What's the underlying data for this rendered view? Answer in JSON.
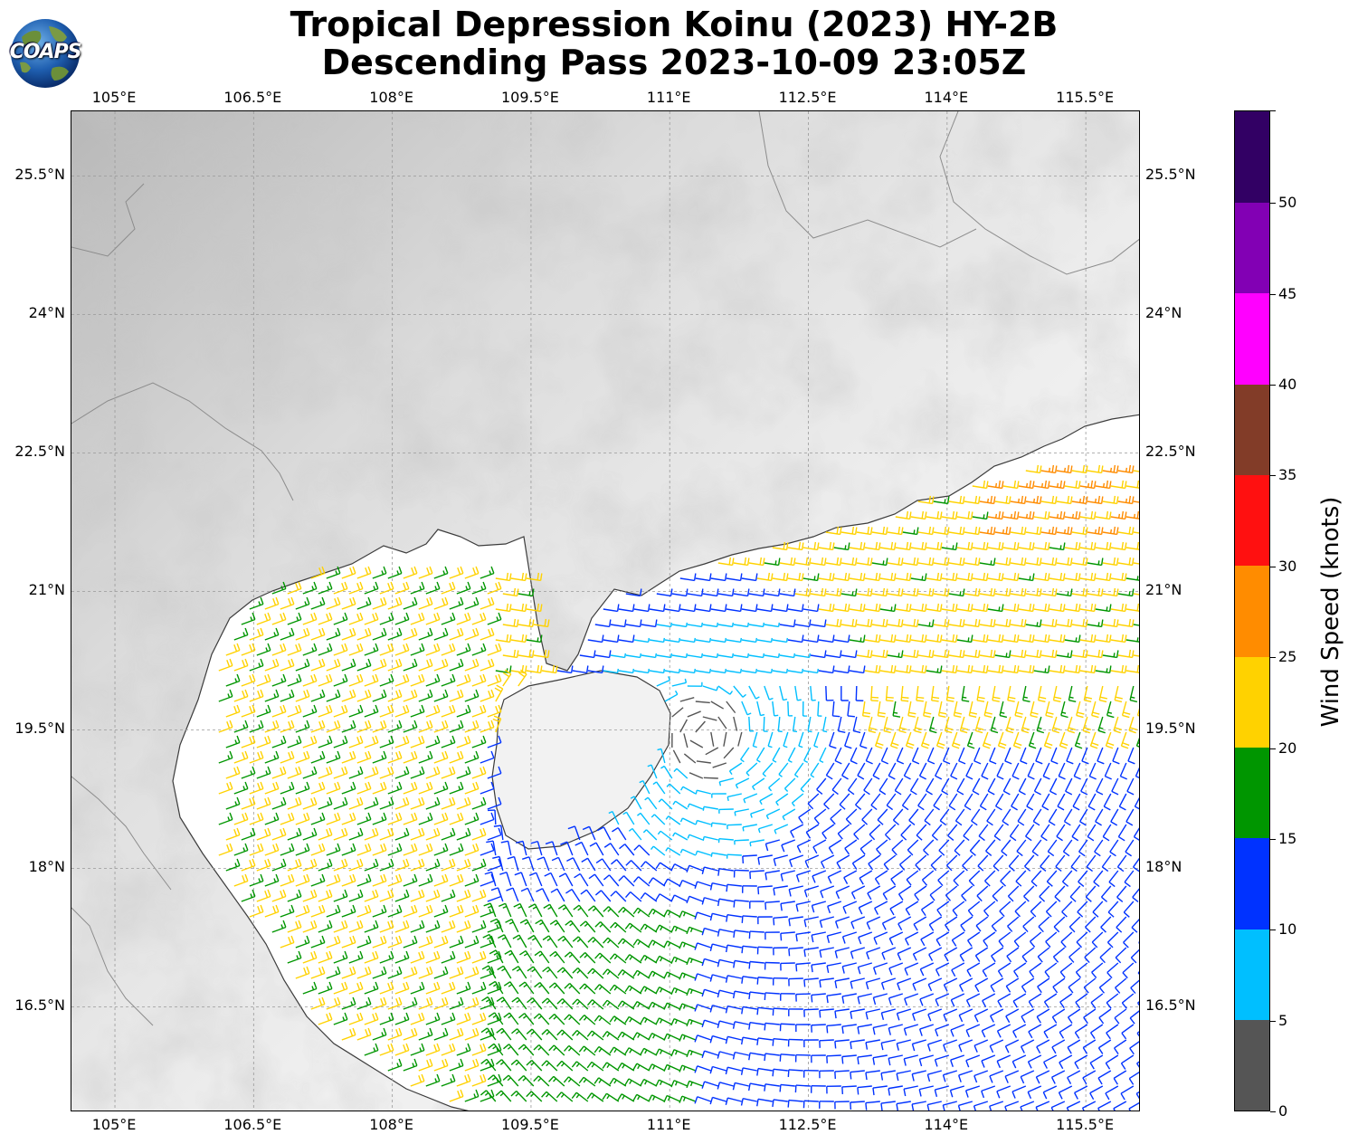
{
  "title": {
    "line1": "Tropical Depression Koinu (2023) HY-2B",
    "line2": "Descending Pass 2023-10-09 23:05Z"
  },
  "logo": {
    "text": "COAPS",
    "icon": "globe-icon"
  },
  "map": {
    "type": "wind-barb-map",
    "lon_ticks": [
      "105°E",
      "106.5°E",
      "108°E",
      "109.5°E",
      "111°E",
      "112.5°E",
      "114°E",
      "115.5°E"
    ],
    "lat_ticks": [
      "25.5°N",
      "24°N",
      "22.5°N",
      "21°N",
      "19.5°N",
      "18°N",
      "16.5°N"
    ],
    "lon_range": [
      104.5,
      116.1
    ],
    "lat_range": [
      15.1,
      26.2
    ],
    "grid": true,
    "colors": {
      "land_light": "#f4f4f4",
      "land_dark": "#c2c2c2",
      "ocean": "#ffffff",
      "coastline": "#3c3c3c",
      "border": "#8c8c8c",
      "grid": "#999999"
    }
  },
  "colorbar": {
    "title": "Wind Speed (knots)",
    "tick_labels": [
      "0",
      "5",
      "10",
      "15",
      "20",
      "25",
      "30",
      "35",
      "40",
      "45",
      "50"
    ],
    "levels": [
      {
        "range": [
          0,
          5
        ],
        "color": "#555555"
      },
      {
        "range": [
          5,
          10
        ],
        "color": "#00bfff"
      },
      {
        "range": [
          10,
          15
        ],
        "color": "#0032ff"
      },
      {
        "range": [
          15,
          20
        ],
        "color": "#009600"
      },
      {
        "range": [
          20,
          25
        ],
        "color": "#ffd200"
      },
      {
        "range": [
          25,
          30
        ],
        "color": "#ff8c00"
      },
      {
        "range": [
          30,
          35
        ],
        "color": "#ff1010"
      },
      {
        "range": [
          35,
          40
        ],
        "color": "#823c28"
      },
      {
        "range": [
          40,
          45
        ],
        "color": "#ff00ff"
      },
      {
        "range": [
          45,
          50
        ],
        "color": "#8200b4"
      },
      {
        "range": [
          50,
          55
        ],
        "color": "#320064"
      }
    ]
  }
}
